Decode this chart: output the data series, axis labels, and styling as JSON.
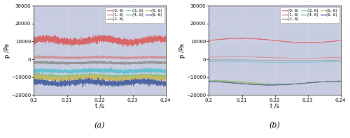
{
  "xlim": [
    0.2,
    0.24
  ],
  "ylim": [
    -20000,
    30000
  ],
  "yticks": [
    -20000,
    -10000,
    0,
    10000,
    20000,
    30000
  ],
  "xticks": [
    0.2,
    0.21,
    0.22,
    0.23,
    0.24
  ],
  "xtick_labels": [
    "0.2",
    "0.21",
    "0.22",
    "0.23",
    "0.24"
  ],
  "xlabel": "t /s",
  "ylabel": "p /Pa",
  "bg_color": "#c8cce0",
  "legend_labels": [
    "(0, 6)",
    "(1, 6)",
    "(2, 6)",
    "(3, 6)",
    "(4, 6)",
    "(5, 6)",
    "(6, 6)"
  ],
  "subplot_labels": [
    "(a)",
    "(b)"
  ],
  "panel_a": {
    "series": [
      {
        "label": "(0, 6)",
        "mean": 10500,
        "amp": 1000,
        "noise": 900,
        "freq": 60,
        "color": "#d96060",
        "phase": 0.0
      },
      {
        "label": "(1, 6)",
        "mean": 1000,
        "amp": 200,
        "noise": 300,
        "freq": 60,
        "color": "#d09090",
        "phase": 0.3
      },
      {
        "label": "(2, 6)",
        "mean": -2000,
        "amp": 200,
        "noise": 300,
        "freq": 60,
        "color": "#909090",
        "phase": 0.6
      },
      {
        "label": "(3, 6)",
        "mean": -6500,
        "amp": 300,
        "noise": 500,
        "freq": 60,
        "color": "#60c0d0",
        "phase": 0.9
      },
      {
        "label": "(4, 6)",
        "mean": -9500,
        "amp": 400,
        "noise": 500,
        "freq": 60,
        "color": "#80c080",
        "phase": 1.2
      },
      {
        "label": "(5, 6)",
        "mean": -10500,
        "amp": 500,
        "noise": 600,
        "freq": 60,
        "color": "#c8b860",
        "phase": 1.5
      },
      {
        "label": "(6, 6)",
        "mean": -13000,
        "amp": 600,
        "noise": 700,
        "freq": 60,
        "color": "#4860a0",
        "phase": 1.8
      }
    ]
  },
  "panel_b": {
    "series": [
      {
        "label": "(0, 6)",
        "mean": 10500,
        "amp": 1200,
        "noise": 30,
        "freq": 25,
        "color": "#d96060",
        "phase": 0.0
      },
      {
        "label": "(1, 6)",
        "mean": 1000,
        "amp": 400,
        "noise": 20,
        "freq": 25,
        "color": "#d09090",
        "phase": 0.3
      },
      {
        "label": "(2, 6)",
        "mean": -500,
        "amp": 200,
        "noise": 15,
        "freq": 25,
        "color": "#909090",
        "phase": 0.6
      },
      {
        "label": "(3, 6)",
        "mean": -1500,
        "amp": 300,
        "noise": 15,
        "freq": 25,
        "color": "#60c0d0",
        "phase": 0.9
      },
      {
        "label": "(4, 6)",
        "mean": -13000,
        "amp": 1000,
        "noise": 30,
        "freq": 25,
        "color": "#80c080",
        "phase": 1.2
      },
      {
        "label": "(5, 6)",
        "mean": -13200,
        "amp": 1000,
        "noise": 30,
        "freq": 25,
        "color": "#c8b860",
        "phase": 1.5
      },
      {
        "label": "(6, 6)",
        "mean": -13400,
        "amp": 1000,
        "noise": 30,
        "freq": 25,
        "color": "#4860a0",
        "phase": 1.8
      }
    ]
  }
}
